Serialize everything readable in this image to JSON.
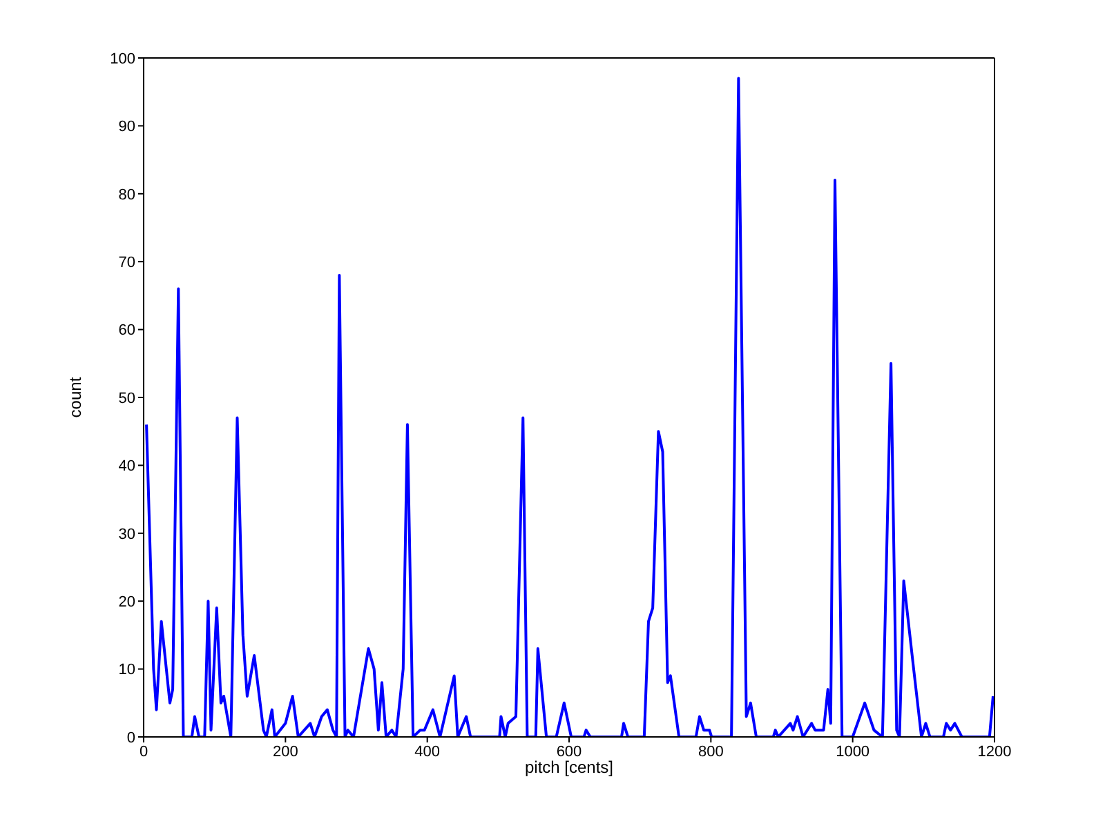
{
  "chart_data": {
    "type": "line",
    "xlabel": "pitch [cents]",
    "ylabel": "count",
    "xlim": [
      0,
      1200
    ],
    "xticks": [
      0,
      200,
      400,
      600,
      800,
      1000,
      1200
    ],
    "ylim": [
      0,
      100
    ],
    "yticks": [
      0,
      10,
      20,
      30,
      40,
      50,
      60,
      70,
      80,
      90,
      100
    ],
    "legend": false,
    "marker": "none",
    "line_style": "solid",
    "series": [
      {
        "color": "#0000ff",
        "x": [
          4,
          14,
          18,
          25,
          37,
          41,
          49,
          56,
          68,
          72,
          78,
          86,
          91,
          95,
          103,
          109,
          113,
          123,
          132,
          140,
          146,
          156,
          169,
          173,
          181,
          185,
          200,
          210,
          218,
          235,
          241,
          251,
          259,
          267,
          272,
          276,
          284,
          288,
          296,
          317,
          325,
          331,
          336,
          342,
          350,
          356,
          366,
          372,
          380,
          390,
          396,
          408,
          418,
          438,
          443,
          455,
          461,
          502,
          504,
          510,
          514,
          525,
          535,
          541,
          553,
          556,
          568,
          582,
          593,
          603,
          621,
          624,
          630,
          674,
          677,
          683,
          706,
          712,
          718,
          726,
          732,
          739,
          743,
          755,
          779,
          784,
          790,
          798,
          801,
          829,
          839,
          850,
          856,
          864,
          888,
          891,
          895,
          912,
          916,
          922,
          930,
          942,
          947,
          959,
          965,
          969,
          975,
          985,
          1000,
          1017,
          1030,
          1042,
          1054,
          1062,
          1066,
          1072,
          1086,
          1097,
          1103,
          1109,
          1128,
          1132,
          1138,
          1144,
          1154,
          1193,
          1198
        ],
        "values": [
          46,
          10,
          4,
          17,
          5,
          7,
          66,
          0,
          0,
          3,
          0,
          0,
          20,
          1,
          19,
          5,
          6,
          0,
          47,
          15,
          6,
          12,
          1,
          0,
          4,
          0,
          2,
          6,
          0,
          2,
          0,
          3,
          4,
          1,
          0,
          68,
          0,
          1,
          0,
          13,
          10,
          1,
          8,
          0,
          1,
          0,
          10,
          46,
          0,
          1,
          1,
          4,
          0,
          9,
          0,
          3,
          0,
          0,
          3,
          0,
          2,
          3,
          47,
          0,
          0,
          13,
          0,
          0,
          5,
          0,
          0,
          1,
          0,
          0,
          2,
          0,
          0,
          17,
          19,
          45,
          42,
          8,
          9,
          0,
          0,
          3,
          1,
          1,
          0,
          0,
          97,
          3,
          5,
          0,
          0,
          1,
          0,
          2,
          1,
          3,
          0,
          2,
          1,
          1,
          7,
          2,
          82,
          0,
          0,
          5,
          1,
          0,
          55,
          1,
          0,
          23,
          10,
          0,
          2,
          0,
          0,
          2,
          1,
          2,
          0,
          0,
          6
        ]
      }
    ]
  }
}
